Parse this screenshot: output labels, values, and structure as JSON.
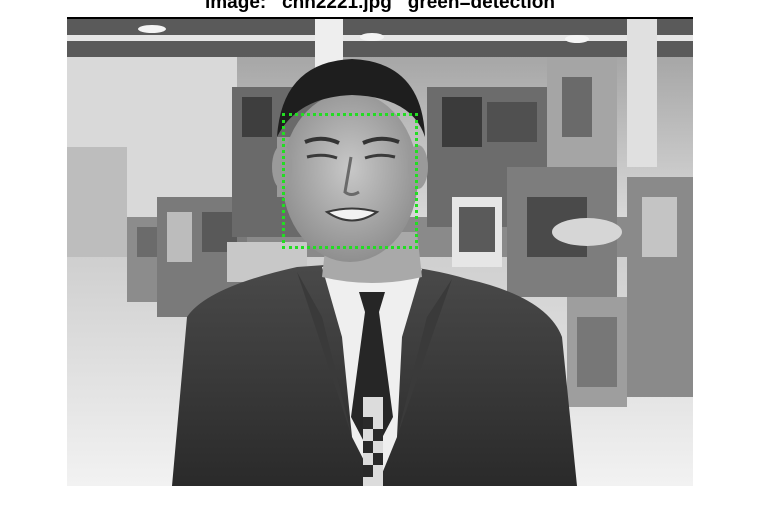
{
  "figure": {
    "title": "image:   cnn2221.jpg   green=detection"
  },
  "photo": {
    "description_icon": "news-anchor-photo",
    "style": "grayscale"
  },
  "detection": {
    "color": "#22dd22"
  },
  "colors": {
    "background": "#ffffff",
    "axes": "#000000"
  }
}
